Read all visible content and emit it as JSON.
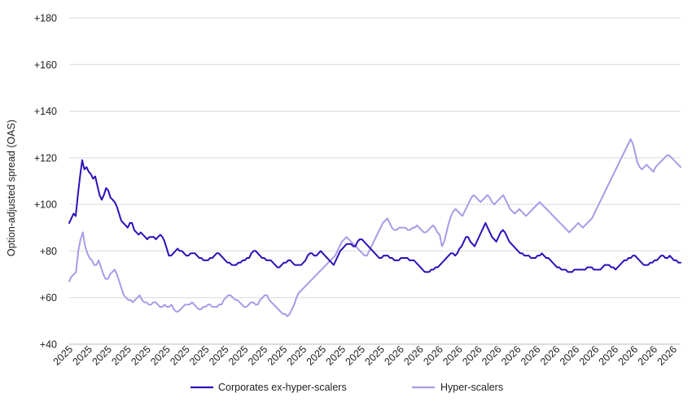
{
  "chart_data": {
    "type": "line",
    "title": "",
    "xlabel": "",
    "ylabel": "Option-adjusted spread (OAS)",
    "ylim": [
      40,
      180
    ],
    "yticks": [
      "+40",
      "+60",
      "+80",
      "+100",
      "+120",
      "+140",
      "+160",
      "+180"
    ],
    "ytick_values": [
      40,
      60,
      80,
      100,
      120,
      140,
      160,
      180
    ],
    "xticks": [
      "2025",
      "2025",
      "2025",
      "2025",
      "2025",
      "2025",
      "2025",
      "2025",
      "2025",
      "2025",
      "2025",
      "2025",
      "2025",
      "2025",
      "2025",
      "2025",
      "2025",
      "2026",
      "2026",
      "2026",
      "2026",
      "2026",
      "2026",
      "2026",
      "2026",
      "2026",
      "2026",
      "2026",
      "2026",
      "2026",
      "2026",
      "2026"
    ],
    "grid": true,
    "legend_position": "bottom",
    "series": [
      {
        "name": "Corporates ex-hyper-scalers",
        "color": "#2E0FB8",
        "values": [
          92,
          94,
          96,
          95,
          104,
          112,
          119,
          115,
          116,
          114,
          113,
          111,
          112,
          108,
          104,
          102,
          104,
          107,
          106,
          103,
          102,
          101,
          99,
          96,
          93,
          92,
          91,
          90,
          92,
          92,
          89,
          88,
          87,
          88,
          87,
          86,
          85,
          86,
          86,
          86,
          85,
          86,
          87,
          86,
          84,
          81,
          78,
          78,
          79,
          80,
          81,
          80,
          80,
          79,
          78,
          78,
          79,
          79,
          79,
          78,
          77,
          77,
          76,
          76,
          76,
          77,
          77,
          78,
          79,
          79,
          78,
          77,
          76,
          75,
          75,
          74,
          74,
          74,
          75,
          75,
          76,
          76,
          77,
          77,
          79,
          80,
          80,
          79,
          78,
          77,
          77,
          76,
          76,
          76,
          75,
          74,
          73,
          73,
          74,
          75,
          75,
          76,
          76,
          75,
          74,
          74,
          74,
          74,
          75,
          76,
          78,
          79,
          79,
          78,
          78,
          79,
          80,
          79,
          78,
          77,
          76,
          75,
          74,
          76,
          78,
          80,
          81,
          82,
          83,
          83,
          83,
          82,
          82,
          84,
          85,
          85,
          84,
          83,
          82,
          81,
          80,
          79,
          78,
          77,
          77,
          78,
          78,
          78,
          77,
          77,
          76,
          76,
          76,
          77,
          77,
          77,
          77,
          76,
          76,
          76,
          75,
          74,
          73,
          72,
          71,
          71,
          71,
          72,
          72,
          73,
          73,
          74,
          75,
          76,
          77,
          78,
          79,
          79,
          78,
          79,
          81,
          82,
          84,
          86,
          86,
          84,
          83,
          82,
          84,
          86,
          88,
          90,
          92,
          90,
          88,
          86,
          85,
          84,
          86,
          88,
          89,
          88,
          86,
          84,
          83,
          82,
          81,
          80,
          79,
          79,
          78,
          78,
          78,
          77,
          77,
          77,
          78,
          78,
          79,
          78,
          77,
          77,
          76,
          75,
          74,
          73,
          73,
          72,
          72,
          72,
          71,
          71,
          71,
          72,
          72,
          72,
          72,
          72,
          72,
          73,
          73,
          73,
          72,
          72,
          72,
          72,
          73,
          74,
          74,
          74,
          73,
          73,
          72,
          73,
          74,
          75,
          76,
          76,
          77,
          77,
          78,
          78,
          77,
          76,
          75,
          74,
          74,
          74,
          75,
          75,
          76,
          76,
          77,
          78,
          78,
          77,
          77,
          78,
          77,
          76,
          76,
          75,
          75
        ]
      },
      {
        "name": "Hyper-scalers",
        "color": "#A99BE8",
        "values": [
          67,
          69,
          70,
          71,
          80,
          85,
          88,
          82,
          79,
          77,
          76,
          74,
          74,
          76,
          73,
          70,
          68,
          68,
          70,
          71,
          72,
          70,
          67,
          64,
          61,
          60,
          59,
          59,
          58,
          59,
          60,
          61,
          59,
          58,
          58,
          57,
          57,
          58,
          58,
          57,
          56,
          56,
          57,
          56,
          56,
          57,
          55,
          54,
          54,
          55,
          56,
          57,
          57,
          57,
          58,
          57,
          56,
          55,
          55,
          56,
          56,
          57,
          57,
          56,
          56,
          56,
          57,
          57,
          59,
          60,
          61,
          61,
          60,
          59,
          59,
          58,
          57,
          56,
          56,
          57,
          58,
          58,
          57,
          57,
          59,
          60,
          61,
          61,
          59,
          58,
          57,
          56,
          55,
          54,
          53,
          53,
          52,
          53,
          55,
          57,
          60,
          62,
          63,
          64,
          65,
          66,
          67,
          68,
          69,
          70,
          71,
          72,
          73,
          74,
          75,
          76,
          77,
          78,
          80,
          82,
          84,
          85,
          86,
          85,
          84,
          83,
          82,
          81,
          80,
          79,
          78,
          78,
          80,
          82,
          84,
          86,
          88,
          90,
          92,
          93,
          94,
          92,
          90,
          89,
          89,
          90,
          90,
          90,
          90,
          89,
          89,
          90,
          90,
          91,
          90,
          89,
          88,
          88,
          89,
          90,
          91,
          90,
          88,
          87,
          82,
          84,
          88,
          92,
          95,
          97,
          98,
          97,
          96,
          95,
          97,
          99,
          101,
          103,
          104,
          103,
          102,
          101,
          102,
          103,
          104,
          103,
          101,
          100,
          101,
          102,
          103,
          104,
          102,
          100,
          98,
          97,
          96,
          97,
          98,
          97,
          96,
          95,
          96,
          97,
          98,
          99,
          100,
          101,
          100,
          99,
          98,
          97,
          96,
          95,
          94,
          93,
          92,
          91,
          90,
          89,
          88,
          89,
          90,
          91,
          92,
          91,
          90,
          91,
          92,
          93,
          94,
          96,
          98,
          100,
          102,
          104,
          106,
          108,
          110,
          112,
          114,
          116,
          118,
          120,
          122,
          124,
          126,
          128,
          126,
          122,
          118,
          116,
          115,
          116,
          117,
          116,
          115,
          114,
          116,
          117,
          118,
          119,
          120,
          121,
          121,
          120,
          119,
          118,
          117,
          116
        ]
      }
    ]
  },
  "legend": {
    "item1": "Corporates ex-hyper-scalers",
    "item2": "Hyper-scalers"
  }
}
